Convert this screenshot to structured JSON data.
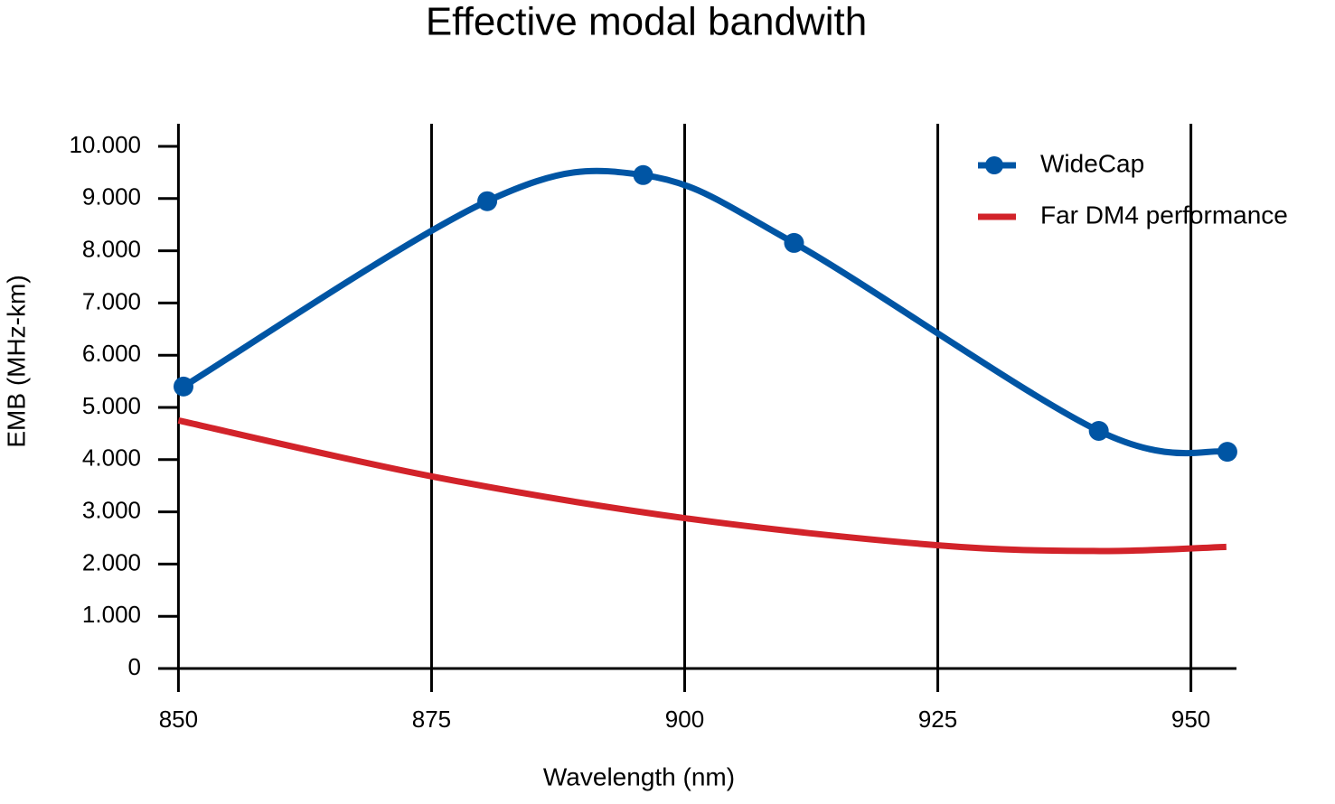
{
  "chart_data": {
    "type": "line",
    "title": "Effective modal bandwith",
    "x_label": "Wavelength (nm)",
    "y_label": "EMB (MHz-km)",
    "xlim": [
      848,
      954.5
    ],
    "ylim": [
      0,
      10000
    ],
    "xticks": [
      850,
      875,
      900,
      925,
      950
    ],
    "yticks": [
      0,
      {
        "value": 1000,
        "label": "1.000"
      },
      {
        "value": 2000,
        "label": "2.000"
      },
      {
        "value": 3000,
        "label": "3.000"
      },
      {
        "value": 4000,
        "label": "4.000"
      },
      {
        "value": 5000,
        "label": "5.000"
      },
      {
        "value": 6000,
        "label": "6.000"
      },
      {
        "value": 7000,
        "label": "7.000"
      },
      {
        "value": 8000,
        "label": "8.000"
      },
      {
        "value": 9000,
        "label": "9.000"
      },
      {
        "value": 10000,
        "label": "10.000"
      }
    ],
    "grid": "x",
    "legend": "top-right",
    "series": [
      {
        "name": "WideCap",
        "color": "#0055a4",
        "markers": true,
        "x": [
          850.5,
          880.5,
          895.9,
          910.8,
          940.9,
          953.6
        ],
        "values": [
          5400,
          8950,
          9450,
          8150,
          4550,
          4150
        ]
      },
      {
        "name": "Far DM4 performance",
        "color": "#d2232a",
        "markers": false,
        "x": [
          850,
          875,
          900,
          925,
          941,
          953.5
        ],
        "values": [
          4750,
          3680,
          2880,
          2360,
          2250,
          2330
        ]
      }
    ]
  }
}
